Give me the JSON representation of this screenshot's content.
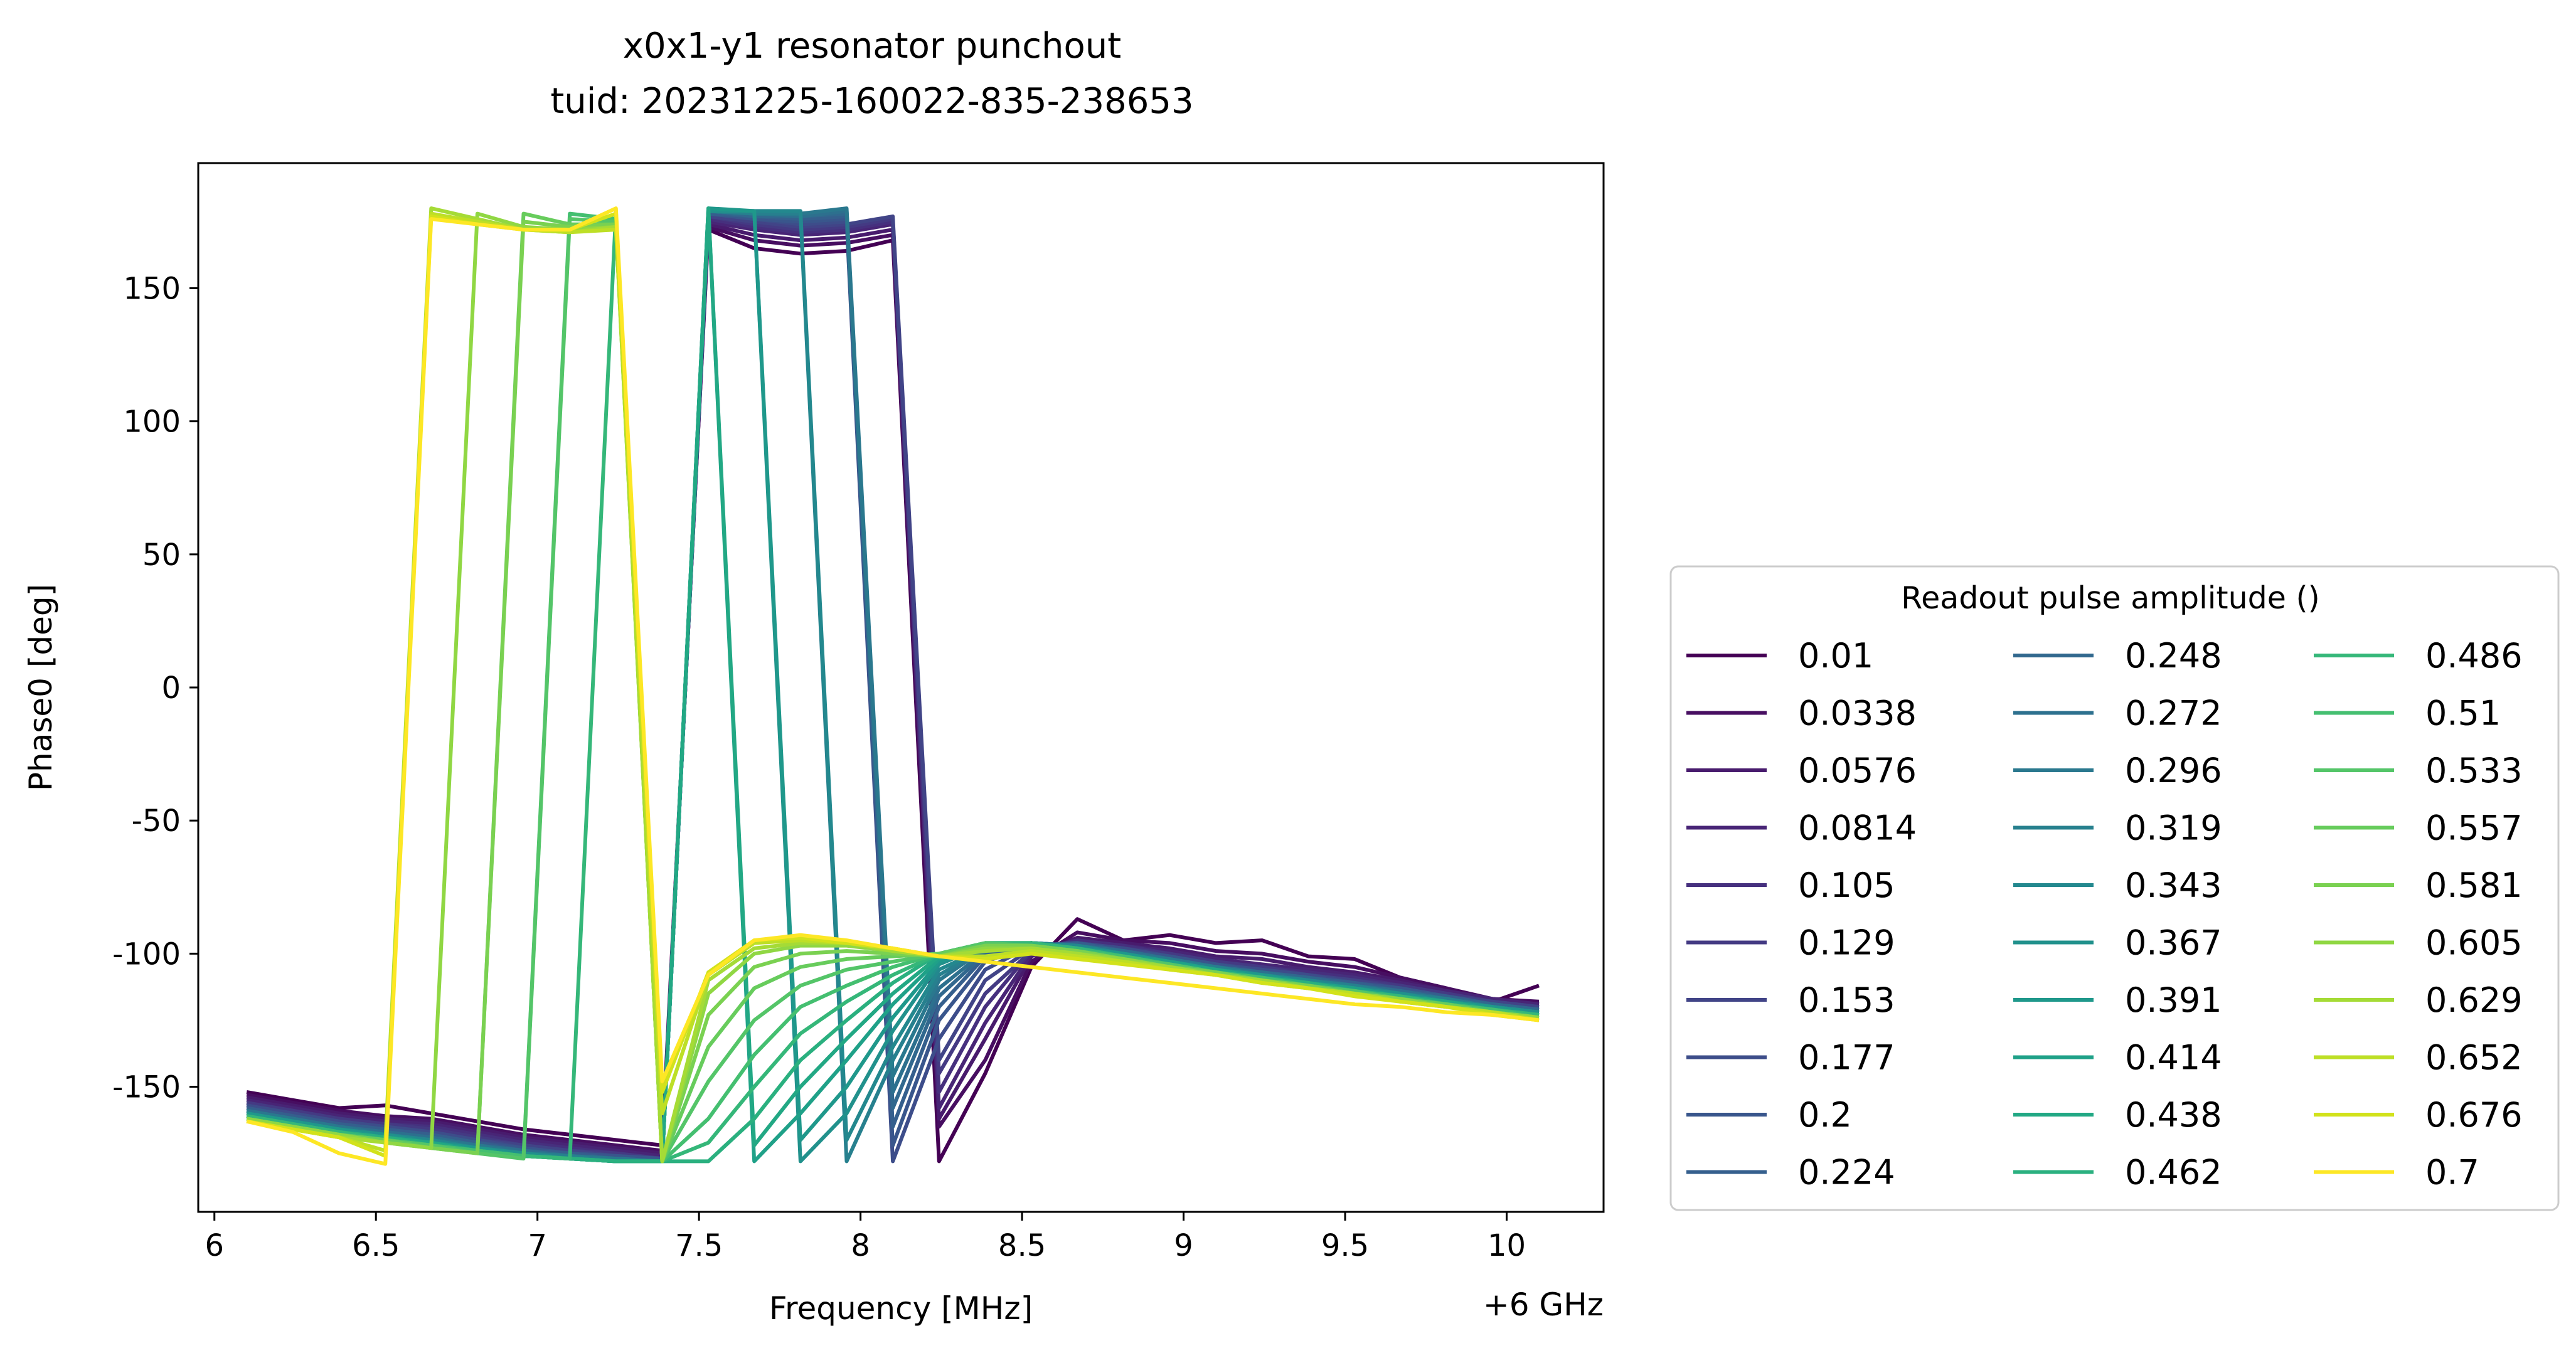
{
  "chart_data": {
    "type": "line",
    "title": "x0x1-y1 resonator punchout",
    "subtitle": "tuid: 20231225-160022-835-238653",
    "xlabel": "Frequency [MHz]",
    "ylabel": "Phase0 [deg]",
    "x_offset_label": "+6 GHz",
    "xlim": [
      5.95,
      10.3
    ],
    "ylim": [
      -197,
      197
    ],
    "x_ticks": [
      6,
      6.5,
      7,
      7.5,
      8,
      8.5,
      9,
      9.5,
      10
    ],
    "x_tick_labels": [
      "6",
      "6.5",
      "7",
      "7.5",
      "8",
      "8.5",
      "9",
      "9.5",
      "10"
    ],
    "y_ticks": [
      150,
      100,
      50,
      0,
      -50,
      -100,
      -150
    ],
    "y_tick_labels": [
      "150",
      "100",
      "50",
      "0",
      "-50",
      "-100",
      "-150"
    ],
    "grid": false,
    "legend": {
      "title": "Readout pulse amplitude ()",
      "placement": "outside-right-lower",
      "columns": 3,
      "entries": [
        "0.01",
        "0.0338",
        "0.0576",
        "0.0814",
        "0.105",
        "0.129",
        "0.153",
        "0.177",
        "0.2",
        "0.224",
        "0.248",
        "0.272",
        "0.296",
        "0.319",
        "0.343",
        "0.367",
        "0.391",
        "0.414",
        "0.438",
        "0.462",
        "0.486",
        "0.51",
        "0.533",
        "0.557",
        "0.581",
        "0.605",
        "0.629",
        "0.652",
        "0.676",
        "0.7"
      ]
    },
    "colors": [
      "#440154",
      "#470e61",
      "#481b6d",
      "#482576",
      "#46307e",
      "#443a83",
      "#414487",
      "#3d4d8a",
      "#39568c",
      "#355f8d",
      "#31688e",
      "#2d708e",
      "#2a788e",
      "#27808e",
      "#23888e",
      "#21918c",
      "#1f988b",
      "#1fa188",
      "#22a884",
      "#2ab07f",
      "#35b779",
      "#44bf70",
      "#54c568",
      "#67cc5c",
      "#7ad151",
      "#90d743",
      "#a5db36",
      "#bddf26",
      "#d2e21b",
      "#fde725"
    ],
    "x": [
      6.1,
      6.243,
      6.386,
      6.529,
      6.671,
      6.814,
      6.957,
      7.1,
      7.243,
      7.386,
      7.529,
      7.671,
      7.814,
      7.957,
      8.1,
      8.243,
      8.386,
      8.529,
      8.671,
      8.814,
      8.957,
      9.1,
      9.243,
      9.386,
      9.529,
      9.671,
      9.814,
      9.957,
      10.1
    ],
    "series": [
      {
        "name": "0.01",
        "values": [
          -152,
          -155,
          -158,
          -157,
          -160,
          -163,
          -166,
          -168,
          -170,
          -172,
          172,
          165,
          163,
          164,
          168,
          -178,
          -145,
          -105,
          -87,
          -95,
          -93,
          -96,
          -95,
          -101,
          -102,
          -109,
          -113,
          -118,
          -112
        ]
      },
      {
        "name": "0.0338",
        "values": [
          -153,
          -156,
          -159,
          -161,
          -162,
          -165,
          -168,
          -170,
          -172,
          -174,
          173,
          168,
          166,
          167,
          170,
          -165,
          -140,
          -103,
          -92,
          -95,
          -96,
          -99,
          -100,
          -103,
          -105,
          -109,
          -113,
          -117,
          -118
        ]
      },
      {
        "name": "0.0576",
        "values": [
          -154,
          -157,
          -160,
          -162,
          -163,
          -166,
          -169,
          -171,
          -173,
          -175,
          174,
          170,
          168,
          169,
          172,
          -162,
          -132,
          -101,
          -94,
          -96,
          -98,
          -101,
          -102,
          -105,
          -107,
          -110,
          -114,
          -117,
          -119
        ]
      },
      {
        "name": "0.0814",
        "values": [
          -155,
          -158,
          -161,
          -163,
          -164,
          -167,
          -170,
          -172,
          -174,
          -176,
          175,
          172,
          170,
          171,
          174,
          -158,
          -126,
          -100,
          -95,
          -97,
          -99,
          -102,
          -104,
          -106,
          -108,
          -111,
          -114,
          -117,
          -119
        ]
      },
      {
        "name": "0.105",
        "values": [
          -156,
          -159,
          -162,
          -164,
          -165,
          -168,
          -171,
          -173,
          -175,
          -177,
          176,
          173,
          171,
          172,
          175,
          -152,
          -120,
          -99,
          -95,
          -97,
          -100,
          -103,
          -105,
          -107,
          -109,
          -112,
          -115,
          -118,
          -120
        ]
      },
      {
        "name": "0.129",
        "values": [
          -156,
          -159,
          -162,
          -164,
          -166,
          -169,
          -172,
          -174,
          -175,
          -177,
          177,
          174,
          172,
          173,
          176,
          -145,
          -115,
          -99,
          -96,
          -98,
          -100,
          -103,
          -105,
          -108,
          -110,
          -112,
          -115,
          -118,
          -120
        ]
      },
      {
        "name": "0.153",
        "values": [
          -157,
          -160,
          -163,
          -165,
          -167,
          -170,
          -172,
          -174,
          -176,
          -177,
          177,
          175,
          173,
          174,
          177,
          -140,
          -110,
          -98,
          -96,
          -98,
          -101,
          -104,
          -106,
          -108,
          -110,
          -113,
          -116,
          -118,
          -120
        ]
      },
      {
        "name": "0.177",
        "values": [
          -157,
          -160,
          -163,
          -165,
          -167,
          -170,
          -173,
          -175,
          -176,
          -177,
          178,
          176,
          174,
          175,
          -178,
          -132,
          -106,
          -97,
          -96,
          -98,
          -101,
          -104,
          -106,
          -108,
          -111,
          -113,
          -116,
          -119,
          -121
        ]
      },
      {
        "name": "0.2",
        "values": [
          -158,
          -161,
          -164,
          -166,
          -168,
          -171,
          -173,
          -175,
          -176,
          -177,
          178,
          176,
          175,
          176,
          -172,
          -125,
          -103,
          -97,
          -96,
          -99,
          -101,
          -104,
          -107,
          -109,
          -111,
          -113,
          -116,
          -119,
          -121
        ]
      },
      {
        "name": "0.224",
        "values": [
          -158,
          -161,
          -164,
          -166,
          -168,
          -171,
          -174,
          -175,
          -177,
          -178,
          178,
          177,
          176,
          177,
          -165,
          -120,
          -101,
          -97,
          -96,
          -99,
          -102,
          -105,
          -107,
          -109,
          -111,
          -114,
          -116,
          -119,
          -121
        ]
      },
      {
        "name": "0.248",
        "values": [
          -159,
          -162,
          -165,
          -167,
          -169,
          -172,
          -174,
          -176,
          -177,
          -178,
          179,
          177,
          177,
          178,
          -158,
          -116,
          -100,
          -97,
          -97,
          -99,
          -102,
          -105,
          -107,
          -109,
          -112,
          -114,
          -117,
          -119,
          -121
        ]
      },
      {
        "name": "0.272",
        "values": [
          -159,
          -162,
          -165,
          -167,
          -169,
          -172,
          -174,
          -176,
          -177,
          -178,
          179,
          178,
          177,
          179,
          -152,
          -113,
          -99,
          -96,
          -97,
          -99,
          -102,
          -105,
          -107,
          -110,
          -112,
          -114,
          -117,
          -120,
          -122
        ]
      },
      {
        "name": "0.296",
        "values": [
          -159,
          -162,
          -165,
          -168,
          -170,
          -172,
          -175,
          -176,
          -177,
          -178,
          179,
          178,
          178,
          180,
          -146,
          -110,
          -98,
          -96,
          -97,
          -100,
          -102,
          -105,
          -108,
          -110,
          -112,
          -115,
          -117,
          -120,
          -122
        ]
      },
      {
        "name": "0.319",
        "values": [
          -160,
          -163,
          -166,
          -168,
          -170,
          -173,
          -175,
          -176,
          -178,
          -178,
          179,
          178,
          178,
          -178,
          -140,
          -108,
          -98,
          -96,
          -97,
          -100,
          -103,
          -105,
          -108,
          -110,
          -112,
          -115,
          -117,
          -120,
          -122
        ]
      },
      {
        "name": "0.343",
        "values": [
          -160,
          -163,
          -166,
          -168,
          -170,
          -173,
          -175,
          -177,
          -178,
          -178,
          179,
          179,
          179,
          -170,
          -135,
          -106,
          -98,
          -96,
          -97,
          -100,
          -103,
          -106,
          -108,
          -110,
          -113,
          -115,
          -118,
          -120,
          -122
        ]
      },
      {
        "name": "0.367",
        "values": [
          -160,
          -163,
          -166,
          -168,
          -171,
          -173,
          -175,
          -177,
          -178,
          -178,
          179,
          179,
          -178,
          -160,
          -129,
          -104,
          -97,
          -96,
          -98,
          -100,
          -103,
          -106,
          -108,
          -111,
          -113,
          -115,
          -118,
          -120,
          -122
        ]
      },
      {
        "name": "0.391",
        "values": [
          -160,
          -163,
          -166,
          -169,
          -171,
          -173,
          -176,
          -177,
          -178,
          -178,
          180,
          179,
          -170,
          -150,
          -124,
          -103,
          -97,
          -96,
          -98,
          -100,
          -103,
          -106,
          -108,
          -111,
          -113,
          -116,
          -118,
          -120,
          -123
        ]
      },
      {
        "name": "0.414",
        "values": [
          -161,
          -164,
          -167,
          -169,
          -171,
          -174,
          -176,
          -177,
          -178,
          -178,
          180,
          -178,
          -160,
          -140,
          -119,
          -102,
          -97,
          -96,
          -98,
          -101,
          -103,
          -106,
          -109,
          -111,
          -113,
          -116,
          -118,
          -121,
          -123
        ]
      },
      {
        "name": "0.438",
        "values": [
          -161,
          -164,
          -167,
          -169,
          -171,
          -174,
          -176,
          -177,
          -178,
          -178,
          180,
          -172,
          -150,
          -132,
          -115,
          -101,
          -96,
          -96,
          -98,
          -101,
          -104,
          -106,
          -109,
          -111,
          -114,
          -116,
          -118,
          -121,
          -123
        ]
      },
      {
        "name": "0.462",
        "values": [
          -161,
          -164,
          -167,
          -169,
          -172,
          -174,
          -176,
          -177,
          -178,
          -178,
          -178,
          -162,
          -140,
          -125,
          -111,
          -100,
          -96,
          -96,
          -98,
          -101,
          -104,
          -107,
          -109,
          -111,
          -114,
          -116,
          -119,
          -121,
          -123
        ]
      },
      {
        "name": "0.486",
        "values": [
          -161,
          -164,
          -167,
          -170,
          -172,
          -174,
          -176,
          -177,
          179,
          -178,
          -171,
          -150,
          -130,
          -118,
          -108,
          -100,
          -96,
          -96,
          -98,
          -101,
          -104,
          -107,
          -109,
          -112,
          -114,
          -116,
          -119,
          -121,
          -123
        ]
      },
      {
        "name": "0.51",
        "values": [
          -162,
          -165,
          -168,
          -170,
          -172,
          -174,
          -176,
          178,
          176,
          -178,
          -162,
          -138,
          -120,
          -112,
          -105,
          -100,
          -96,
          -97,
          -99,
          -101,
          -104,
          -107,
          -109,
          -112,
          -114,
          -117,
          -119,
          -121,
          -124
        ]
      },
      {
        "name": "0.533",
        "values": [
          -162,
          -165,
          -168,
          -170,
          -172,
          -175,
          -177,
          176,
          175,
          -178,
          -148,
          -125,
          -112,
          -106,
          -103,
          -100,
          -96,
          -97,
          -99,
          -102,
          -104,
          -107,
          -110,
          -112,
          -114,
          -117,
          -119,
          -122,
          -124
        ]
      },
      {
        "name": "0.557",
        "values": [
          -162,
          -165,
          -168,
          -170,
          -173,
          -175,
          178,
          174,
          174,
          -178,
          -135,
          -113,
          -105,
          -102,
          -101,
          -100,
          -97,
          -97,
          -99,
          -102,
          -105,
          -107,
          -110,
          -112,
          -115,
          -117,
          -119,
          -122,
          -124
        ]
      },
      {
        "name": "0.581",
        "values": [
          -162,
          -165,
          -168,
          -171,
          -173,
          -175,
          175,
          173,
          174,
          -178,
          -123,
          -105,
          -100,
          -99,
          -100,
          -101,
          -97,
          -97,
          -99,
          -102,
          -105,
          -107,
          -110,
          -112,
          -115,
          -117,
          -120,
          -122,
          -124
        ]
      },
      {
        "name": "0.605",
        "values": [
          -162,
          -165,
          -168,
          -171,
          -173,
          178,
          173,
          172,
          173,
          -178,
          -115,
          -100,
          -97,
          -97,
          -99,
          -101,
          -98,
          -98,
          -100,
          -102,
          -105,
          -108,
          -110,
          -113,
          -115,
          -117,
          -120,
          -122,
          -124
        ]
      },
      {
        "name": "0.629",
        "values": [
          -163,
          -166,
          -169,
          -171,
          180,
          176,
          172,
          171,
          173,
          -178,
          -110,
          -98,
          -96,
          -96,
          -99,
          -101,
          -99,
          -98,
          -100,
          -103,
          -105,
          -108,
          -110,
          -113,
          -115,
          -118,
          -120,
          -122,
          -125
        ]
      },
      {
        "name": "0.652",
        "values": [
          -163,
          -166,
          -169,
          -174,
          178,
          175,
          172,
          171,
          172,
          -160,
          -108,
          -96,
          -95,
          -96,
          -98,
          -101,
          -101,
          -99,
          -101,
          -103,
          -106,
          -108,
          -111,
          -113,
          -115,
          -118,
          -120,
          -122,
          -125
        ]
      },
      {
        "name": "0.676",
        "values": [
          -163,
          -166,
          -169,
          -176,
          177,
          174,
          172,
          172,
          178,
          -152,
          -107,
          -95,
          -94,
          -96,
          -98,
          -101,
          -102,
          -100,
          -102,
          -104,
          -106,
          -108,
          -111,
          -113,
          -116,
          -118,
          -120,
          -123,
          -125
        ]
      },
      {
        "name": "0.7",
        "values": [
          -163,
          -167,
          -175,
          -179,
          176,
          174,
          172,
          172,
          180,
          -148,
          -108,
          -95,
          -93,
          -95,
          -98,
          -101,
          -103,
          -105,
          -107,
          -109,
          -111,
          -113,
          -115,
          -117,
          -119,
          -120,
          -122,
          -123,
          -125
        ]
      }
    ]
  }
}
